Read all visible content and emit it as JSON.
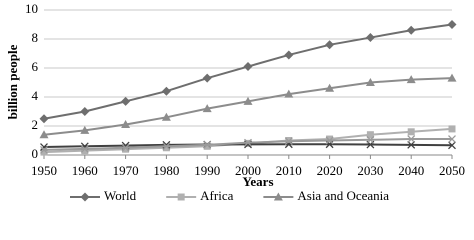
{
  "chart_data": {
    "type": "line",
    "x_label": "Years",
    "y_label": "billion people",
    "x": [
      1950,
      1960,
      1970,
      1980,
      1990,
      2000,
      2010,
      2020,
      2030,
      2040,
      2050
    ],
    "xlim": [
      1950,
      2050
    ],
    "xticks": [
      1950,
      1960,
      1970,
      1980,
      1990,
      2000,
      2010,
      2020,
      2030,
      2040,
      2050
    ],
    "ylim": [
      0,
      10
    ],
    "yticks": [
      0,
      2,
      4,
      6,
      8,
      10
    ],
    "grid": true,
    "series": [
      {
        "name": "World",
        "color": "#6e6e6e",
        "marker": "diamond",
        "values": [
          2.5,
          3.0,
          3.7,
          4.4,
          5.3,
          6.1,
          6.9,
          7.6,
          8.1,
          8.6,
          9.0
        ]
      },
      {
        "name": "Africa",
        "color": "#b0b0b0",
        "marker": "square",
        "values": [
          0.2,
          0.3,
          0.4,
          0.5,
          0.6,
          0.8,
          1.0,
          1.1,
          1.4,
          1.6,
          1.8
        ]
      },
      {
        "name": "Asia and Oceania",
        "color": "#8c8c8c",
        "marker": "triangle",
        "values": [
          1.4,
          1.7,
          2.1,
          2.6,
          3.2,
          3.7,
          4.2,
          4.6,
          5.0,
          5.2,
          5.3
        ]
      },
      {
        "color": "#404040",
        "marker": "x",
        "values": [
          0.55,
          0.6,
          0.65,
          0.7,
          0.72,
          0.73,
          0.74,
          0.74,
          0.72,
          0.7,
          0.67
        ]
      },
      {
        "color": "#9a9a9a",
        "marker": "x",
        "values": [
          0.35,
          0.42,
          0.5,
          0.6,
          0.7,
          0.85,
          0.95,
          1.0,
          1.05,
          1.1,
          1.1
        ]
      }
    ]
  }
}
